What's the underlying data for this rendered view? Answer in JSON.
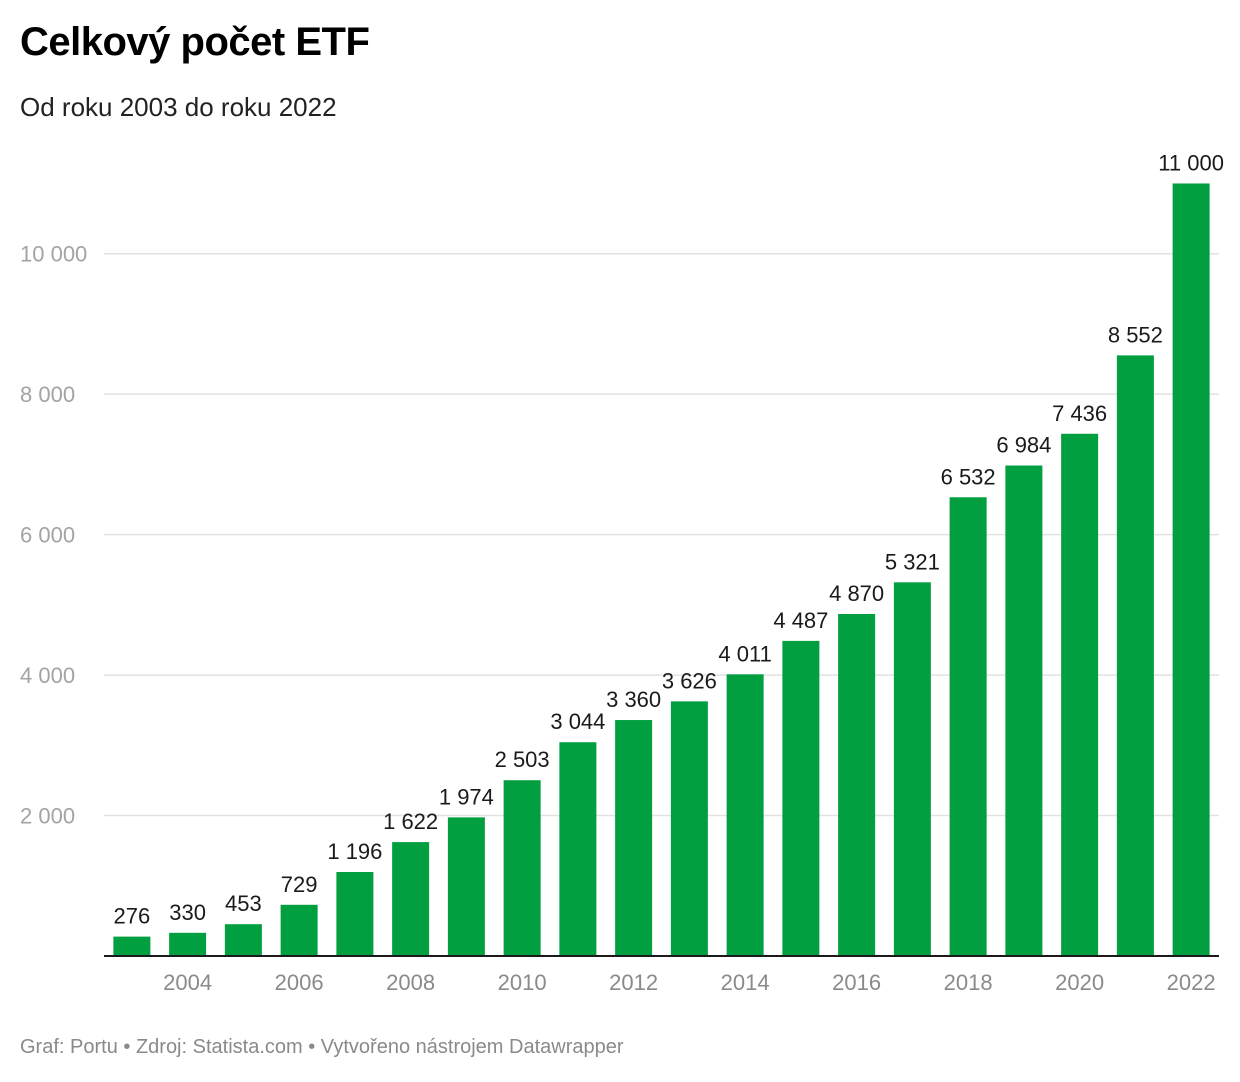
{
  "title": "Celkový počet ETF",
  "subtitle": "Od roku 2003 do roku 2022",
  "footer": {
    "credit": "Graf: Portu",
    "source": "Zdroj: Statista.com",
    "tool": "Vytvořeno nástrojem Datawrapper",
    "separator": " • "
  },
  "colors": {
    "bar": "#029f40",
    "gridline": "#e2e2e2",
    "axis": "#1a1a1a",
    "y_tick_text": "#a3a3a3",
    "x_tick_text": "#8a8a8a",
    "data_label": "#1a1a1a"
  },
  "chart_data": {
    "type": "bar",
    "title": "Celkový počet ETF",
    "subtitle": "Od roku 2003 do roku 2022",
    "xlabel": "",
    "ylabel": "",
    "categories": [
      "2003",
      "2004",
      "2005",
      "2006",
      "2007",
      "2008",
      "2009",
      "2010",
      "2011",
      "2012",
      "2013",
      "2014",
      "2015",
      "2016",
      "2017",
      "2018",
      "2019",
      "2020",
      "2021",
      "2022"
    ],
    "values": [
      276,
      330,
      453,
      729,
      1196,
      1622,
      1974,
      2503,
      3044,
      3360,
      3626,
      4011,
      4487,
      4870,
      5321,
      6532,
      6984,
      7436,
      8552,
      11000
    ],
    "value_labels": [
      "276",
      "330",
      "453",
      "729",
      "1 196",
      "1 622",
      "1 974",
      "2 503",
      "3 044",
      "3 360",
      "3 626",
      "4 011",
      "4 487",
      "4 870",
      "5 321",
      "6 532",
      "6 984",
      "7 436",
      "8 552",
      "11 000"
    ],
    "x_tick_labels": [
      "2004",
      "2006",
      "2008",
      "2010",
      "2012",
      "2014",
      "2016",
      "2018",
      "2020",
      "2022"
    ],
    "y_ticks": [
      2000,
      4000,
      6000,
      8000,
      10000
    ],
    "y_tick_labels": [
      "2 000",
      "4 000",
      "6 000",
      "8 000",
      "10 000"
    ],
    "ylim": [
      0,
      11000
    ],
    "grid": true,
    "legend": "none"
  }
}
